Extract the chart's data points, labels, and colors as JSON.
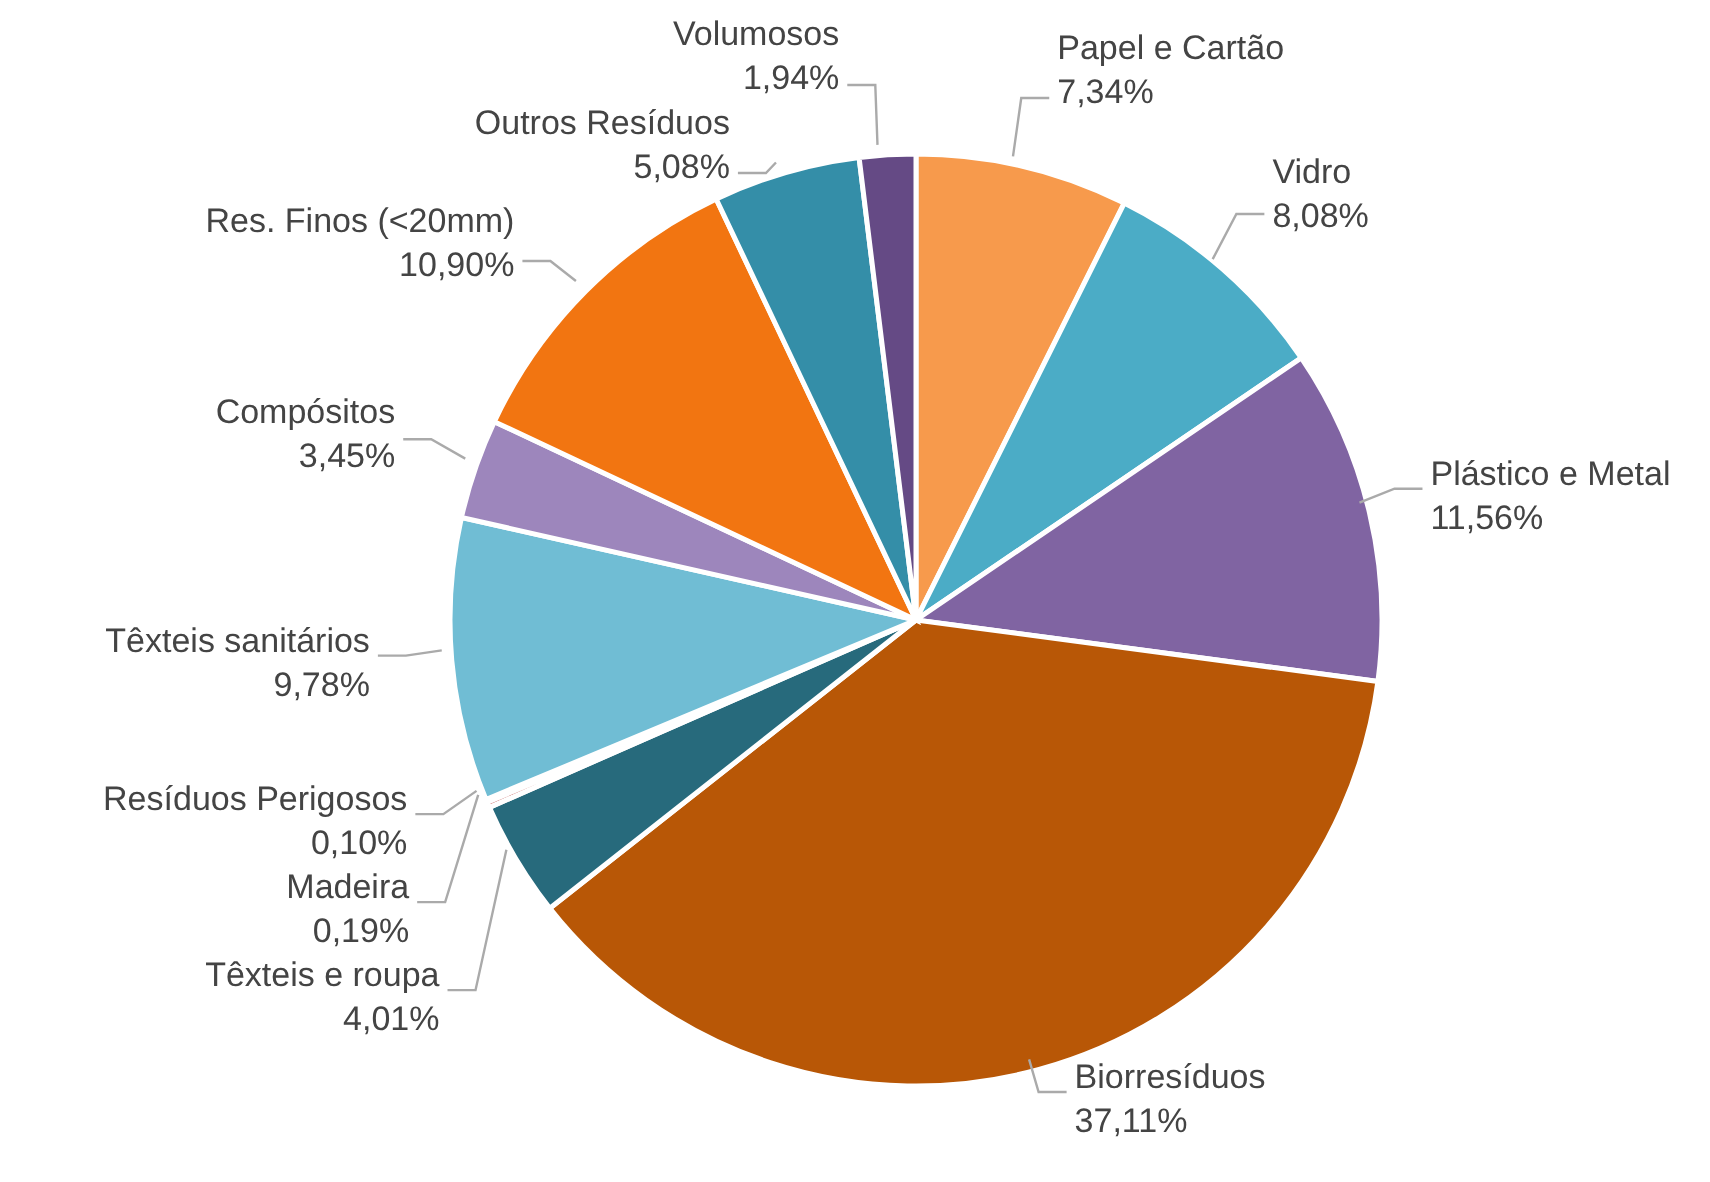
{
  "chart_data": {
    "type": "pie",
    "categories": [
      "Papel e Cartão",
      "Vidro",
      "Plástico e Metal",
      "Biorresíduos",
      "Têxteis e roupa",
      "Madeira",
      "Resíduos Perigosos",
      "Têxteis sanitários",
      "Compósitos",
      "Res. Finos (<20mm)",
      "Outros Resíduos",
      "Volumosos"
    ],
    "values": [
      7.34,
      8.08,
      11.56,
      37.11,
      4.01,
      0.19,
      0.1,
      9.78,
      3.45,
      10.9,
      5.08,
      1.94
    ],
    "value_labels": [
      "7,34%",
      "8,08%",
      "11,56%",
      "37,11%",
      "4,01%",
      "0,19%",
      "0,10%",
      "9,78%",
      "3,45%",
      "10,90%",
      "5,08%",
      "1,94%"
    ],
    "colors": [
      "#f79a4c",
      "#4bacc6",
      "#8064a2",
      "#b85706",
      "#276a7c",
      "#c0504d",
      "#9bbb59",
      "#70bdd4",
      "#9d86bc",
      "#f27511",
      "#348ea8",
      "#654a85"
    ]
  }
}
